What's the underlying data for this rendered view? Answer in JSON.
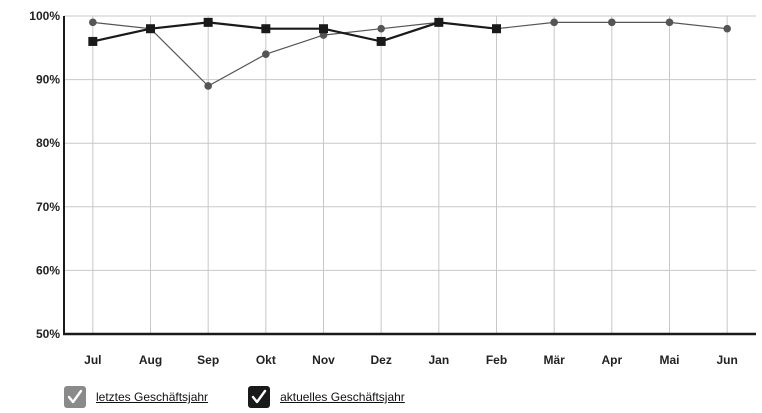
{
  "chart_data": {
    "type": "line",
    "categories": [
      "Jul",
      "Aug",
      "Sep",
      "Okt",
      "Nov",
      "Dez",
      "Jan",
      "Feb",
      "Mär",
      "Apr",
      "Mai",
      "Jun"
    ],
    "series": [
      {
        "name": "letztes Geschäftsjahr",
        "values": [
          99,
          98,
          89,
          94,
          97,
          98,
          99,
          98,
          99,
          99,
          99,
          98
        ],
        "color": "#555555",
        "marker": "circle"
      },
      {
        "name": "aktuelles Geschäftsjahr",
        "values": [
          96,
          98,
          99,
          98,
          98,
          96,
          99,
          98,
          null,
          null,
          null,
          null
        ],
        "color": "#1a1a1a",
        "marker": "square"
      }
    ],
    "ylim": [
      50,
      100
    ],
    "yticks": [
      50,
      60,
      70,
      80,
      90,
      100
    ],
    "ytick_labels": [
      "50%",
      "60%",
      "70%",
      "80%",
      "90%",
      "100%"
    ],
    "grid": true,
    "legend_position": "bottom-left"
  },
  "legend": {
    "items": [
      {
        "label": "letztes Geschäftsjahr",
        "checked": true,
        "box_color": "#8a8a8a"
      },
      {
        "label": "aktuelles Geschäftsjahr",
        "checked": true,
        "box_color": "#1a1a1a"
      }
    ]
  }
}
